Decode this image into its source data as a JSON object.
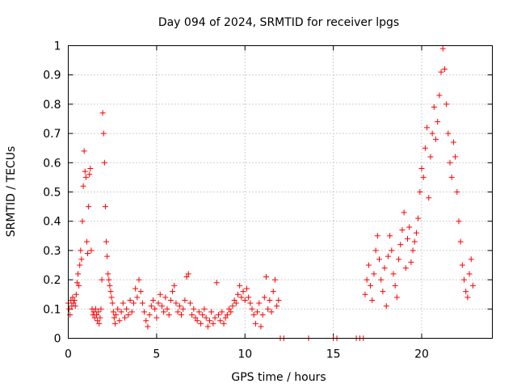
{
  "chart_data": {
    "type": "scatter",
    "title": "Day 094 of 2024, SRMTID for receiver lpgs",
    "xlabel": "GPS time / hours",
    "ylabel": "SRMTID / TECUs",
    "xlim": [
      0,
      24
    ],
    "ylim": [
      0,
      1
    ],
    "xticks": [
      0,
      5,
      10,
      15,
      20
    ],
    "yticks": [
      0,
      0.1,
      0.2,
      0.3,
      0.4,
      0.5,
      0.6,
      0.7,
      0.8,
      0.9,
      1
    ],
    "xtick_labels": [
      "0",
      "5",
      "10",
      "15",
      "20"
    ],
    "ytick_labels": [
      "0",
      "0.1",
      "0.2",
      "0.3",
      "0.4",
      "0.5",
      "0.6",
      "0.7",
      "0.8",
      "0.9",
      "1"
    ],
    "grid": true,
    "marker": "plus",
    "color": "#ff0000",
    "series": [
      {
        "name": "SRMTID",
        "points": [
          [
            0.0,
            0.12
          ],
          [
            0.05,
            0.1
          ],
          [
            0.1,
            0.08
          ],
          [
            0.15,
            0.13
          ],
          [
            0.2,
            0.11
          ],
          [
            0.25,
            0.14
          ],
          [
            0.3,
            0.12
          ],
          [
            0.35,
            0.13
          ],
          [
            0.4,
            0.11
          ],
          [
            0.45,
            0.15
          ],
          [
            0.5,
            0.19
          ],
          [
            0.55,
            0.22
          ],
          [
            0.6,
            0.18
          ],
          [
            0.65,
            0.25
          ],
          [
            0.7,
            0.3
          ],
          [
            0.75,
            0.27
          ],
          [
            0.8,
            0.4
          ],
          [
            0.85,
            0.52
          ],
          [
            0.9,
            0.64
          ],
          [
            0.95,
            0.57
          ],
          [
            1.0,
            0.55
          ],
          [
            1.05,
            0.33
          ],
          [
            1.1,
            0.29
          ],
          [
            1.15,
            0.45
          ],
          [
            1.2,
            0.56
          ],
          [
            1.25,
            0.58
          ],
          [
            1.3,
            0.3
          ],
          [
            1.35,
            0.1
          ],
          [
            1.4,
            0.08
          ],
          [
            1.45,
            0.09
          ],
          [
            1.5,
            0.07
          ],
          [
            1.55,
            0.1
          ],
          [
            1.6,
            0.08
          ],
          [
            1.65,
            0.06
          ],
          [
            1.7,
            0.09
          ],
          [
            1.75,
            0.05
          ],
          [
            1.8,
            0.07
          ],
          [
            1.85,
            0.1
          ],
          [
            1.9,
            0.2
          ],
          [
            1.95,
            0.77
          ],
          [
            2.0,
            0.7
          ],
          [
            2.05,
            0.6
          ],
          [
            2.1,
            0.45
          ],
          [
            2.15,
            0.33
          ],
          [
            2.2,
            0.28
          ],
          [
            2.25,
            0.22
          ],
          [
            2.3,
            0.2
          ],
          [
            2.35,
            0.18
          ],
          [
            2.4,
            0.16
          ],
          [
            2.45,
            0.14
          ],
          [
            2.5,
            0.12
          ],
          [
            2.55,
            0.09
          ],
          [
            2.6,
            0.07
          ],
          [
            2.65,
            0.05
          ],
          [
            2.7,
            0.08
          ],
          [
            2.8,
            0.1
          ],
          [
            2.9,
            0.06
          ],
          [
            3.0,
            0.09
          ],
          [
            3.1,
            0.12
          ],
          [
            3.2,
            0.07
          ],
          [
            3.3,
            0.1
          ],
          [
            3.4,
            0.08
          ],
          [
            3.5,
            0.13
          ],
          [
            3.6,
            0.09
          ],
          [
            3.7,
            0.12
          ],
          [
            3.8,
            0.17
          ],
          [
            3.9,
            0.14
          ],
          [
            4.0,
            0.2
          ],
          [
            4.1,
            0.16
          ],
          [
            4.2,
            0.12
          ],
          [
            4.3,
            0.09
          ],
          [
            4.4,
            0.06
          ],
          [
            4.5,
            0.04
          ],
          [
            4.6,
            0.08
          ],
          [
            4.7,
            0.11
          ],
          [
            4.8,
            0.13
          ],
          [
            4.9,
            0.1
          ],
          [
            5.0,
            0.07
          ],
          [
            5.1,
            0.12
          ],
          [
            5.2,
            0.15
          ],
          [
            5.3,
            0.11
          ],
          [
            5.4,
            0.09
          ],
          [
            5.5,
            0.14
          ],
          [
            5.6,
            0.1
          ],
          [
            5.7,
            0.08
          ],
          [
            5.8,
            0.13
          ],
          [
            5.9,
            0.16
          ],
          [
            6.0,
            0.18
          ],
          [
            6.1,
            0.12
          ],
          [
            6.2,
            0.09
          ],
          [
            6.3,
            0.11
          ],
          [
            6.4,
            0.08
          ],
          [
            6.5,
            0.1
          ],
          [
            6.6,
            0.13
          ],
          [
            6.7,
            0.21
          ],
          [
            6.8,
            0.22
          ],
          [
            6.9,
            0.12
          ],
          [
            7.0,
            0.08
          ],
          [
            7.1,
            0.1
          ],
          [
            7.2,
            0.07
          ],
          [
            7.3,
            0.06
          ],
          [
            7.4,
            0.09
          ],
          [
            7.5,
            0.05
          ],
          [
            7.6,
            0.08
          ],
          [
            7.7,
            0.1
          ],
          [
            7.8,
            0.07
          ],
          [
            7.9,
            0.04
          ],
          [
            8.0,
            0.06
          ],
          [
            8.1,
            0.09
          ],
          [
            8.2,
            0.05
          ],
          [
            8.3,
            0.07
          ],
          [
            8.4,
            0.19
          ],
          [
            8.5,
            0.08
          ],
          [
            8.6,
            0.06
          ],
          [
            8.7,
            0.09
          ],
          [
            8.8,
            0.05
          ],
          [
            8.9,
            0.07
          ],
          [
            9.0,
            0.08
          ],
          [
            9.1,
            0.1
          ],
          [
            9.2,
            0.09
          ],
          [
            9.3,
            0.11
          ],
          [
            9.4,
            0.13
          ],
          [
            9.5,
            0.12
          ],
          [
            9.6,
            0.15
          ],
          [
            9.7,
            0.18
          ],
          [
            9.8,
            0.14
          ],
          [
            9.9,
            0.16
          ],
          [
            10.0,
            0.13
          ],
          [
            10.1,
            0.17
          ],
          [
            10.2,
            0.14
          ],
          [
            10.3,
            0.12
          ],
          [
            10.4,
            0.1
          ],
          [
            10.5,
            0.08
          ],
          [
            10.6,
            0.05
          ],
          [
            10.7,
            0.09
          ],
          [
            10.8,
            0.12
          ],
          [
            10.9,
            0.04
          ],
          [
            11.0,
            0.08
          ],
          [
            11.1,
            0.14
          ],
          [
            11.2,
            0.21
          ],
          [
            11.3,
            0.1
          ],
          [
            11.4,
            0.13
          ],
          [
            11.5,
            0.09
          ],
          [
            11.6,
            0.16
          ],
          [
            11.7,
            0.2
          ],
          [
            11.8,
            0.11
          ],
          [
            11.9,
            0.13
          ],
          [
            12.0,
            0.0
          ],
          [
            12.2,
            0.0
          ],
          [
            13.6,
            0.0
          ],
          [
            15.0,
            0.0
          ],
          [
            15.2,
            0.0
          ],
          [
            16.3,
            0.0
          ],
          [
            16.5,
            0.0
          ],
          [
            16.7,
            0.0
          ],
          [
            16.8,
            0.15
          ],
          [
            16.9,
            0.2
          ],
          [
            17.0,
            0.25
          ],
          [
            17.1,
            0.18
          ],
          [
            17.2,
            0.13
          ],
          [
            17.3,
            0.22
          ],
          [
            17.4,
            0.3
          ],
          [
            17.5,
            0.35
          ],
          [
            17.6,
            0.27
          ],
          [
            17.7,
            0.2
          ],
          [
            17.8,
            0.16
          ],
          [
            17.9,
            0.24
          ],
          [
            18.0,
            0.11
          ],
          [
            18.1,
            0.28
          ],
          [
            18.2,
            0.35
          ],
          [
            18.3,
            0.3
          ],
          [
            18.4,
            0.22
          ],
          [
            18.5,
            0.18
          ],
          [
            18.6,
            0.14
          ],
          [
            18.7,
            0.27
          ],
          [
            18.8,
            0.32
          ],
          [
            18.9,
            0.37
          ],
          [
            19.0,
            0.43
          ],
          [
            19.1,
            0.24
          ],
          [
            19.2,
            0.34
          ],
          [
            19.3,
            0.38
          ],
          [
            19.4,
            0.26
          ],
          [
            19.5,
            0.3
          ],
          [
            19.6,
            0.33
          ],
          [
            19.7,
            0.36
          ],
          [
            19.8,
            0.41
          ],
          [
            19.9,
            0.5
          ],
          [
            20.0,
            0.58
          ],
          [
            20.1,
            0.55
          ],
          [
            20.2,
            0.65
          ],
          [
            20.3,
            0.72
          ],
          [
            20.4,
            0.48
          ],
          [
            20.5,
            0.62
          ],
          [
            20.6,
            0.7
          ],
          [
            20.7,
            0.79
          ],
          [
            20.8,
            0.68
          ],
          [
            20.9,
            0.74
          ],
          [
            21.0,
            0.83
          ],
          [
            21.1,
            0.91
          ],
          [
            21.2,
            0.99
          ],
          [
            21.3,
            0.92
          ],
          [
            21.4,
            0.8
          ],
          [
            21.5,
            0.7
          ],
          [
            21.6,
            0.6
          ],
          [
            21.7,
            0.55
          ],
          [
            21.8,
            0.67
          ],
          [
            21.9,
            0.62
          ],
          [
            22.0,
            0.5
          ],
          [
            22.1,
            0.4
          ],
          [
            22.2,
            0.33
          ],
          [
            22.3,
            0.25
          ],
          [
            22.4,
            0.2
          ],
          [
            22.5,
            0.16
          ],
          [
            22.6,
            0.14
          ],
          [
            22.7,
            0.22
          ],
          [
            22.8,
            0.27
          ],
          [
            22.9,
            0.18
          ]
        ]
      }
    ]
  }
}
